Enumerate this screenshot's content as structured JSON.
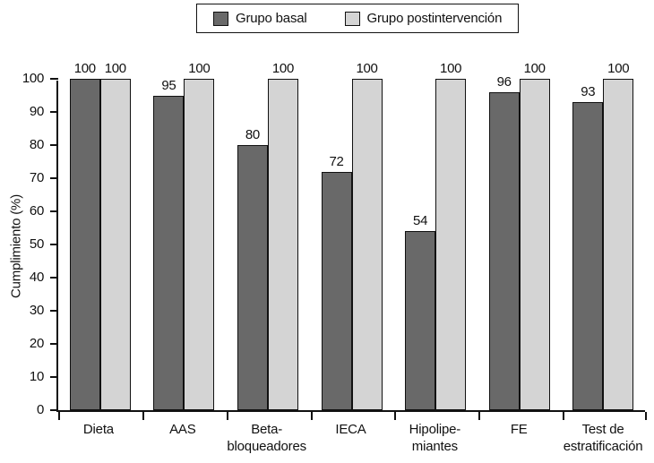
{
  "figure": {
    "background": "#ffffff",
    "axis_color": "#111111"
  },
  "chart_data": {
    "type": "bar",
    "title": "",
    "categories": [
      "Dieta",
      "AAS",
      "Beta-bloqueadores",
      "IECA",
      "Hipolipemiantes",
      "FE",
      "Test de estratificación"
    ],
    "category_lines": [
      [
        "Dieta"
      ],
      [
        "AAS"
      ],
      [
        "Beta-",
        "bloqueadores"
      ],
      [
        "IECA"
      ],
      [
        "Hipolipe-",
        "miantes"
      ],
      [
        "FE"
      ],
      [
        "Test de",
        "estratificación"
      ]
    ],
    "series": [
      {
        "name": "Grupo basal",
        "color": "#696969",
        "values": [
          100,
          95,
          80,
          72,
          54,
          96,
          93
        ]
      },
      {
        "name": "Grupo postintervención",
        "color": "#d4d4d4",
        "values": [
          100,
          100,
          100,
          100,
          100,
          100,
          100
        ]
      }
    ],
    "xlabel": "",
    "ylabel": "Cumplimiento (%)",
    "ylim": [
      0,
      100
    ],
    "yticks": [
      0,
      10,
      20,
      30,
      40,
      50,
      60,
      70,
      80,
      90,
      100
    ],
    "grid": false,
    "legend_position": "top-center",
    "bar_outline": "#111111",
    "value_labels": true
  }
}
